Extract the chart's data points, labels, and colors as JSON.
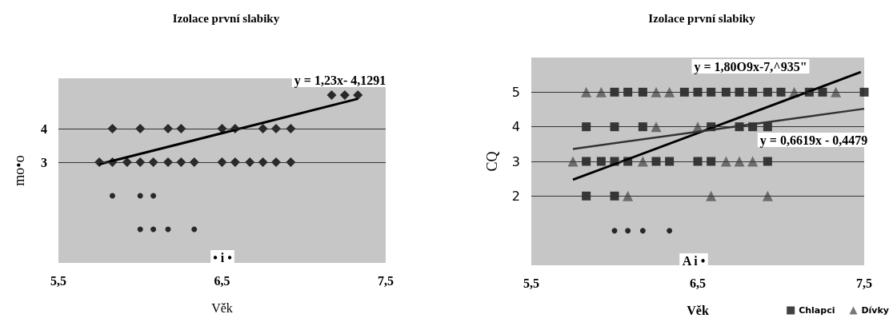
{
  "chart_data": [
    {
      "type": "scatter",
      "title": "Izolace první slabiky",
      "xlabel": "Věk",
      "ylabel": "mo•o",
      "xlim": [
        5.5,
        7.5
      ],
      "xticks": [
        {
          "value": 5.5,
          "label": "5,5"
        },
        {
          "value": 6.5,
          "label": "6,5"
        },
        {
          "value": 7.5,
          "label": "7,5"
        }
      ],
      "ylim": [
        0,
        5.5
      ],
      "yticks": [
        3,
        4
      ],
      "grid": "y",
      "legend": false,
      "series": [
        {
          "marker": "diamond",
          "color": "#000000",
          "x": [
            5.75,
            5.83,
            5.92,
            6.0,
            6.08,
            6.17,
            6.25,
            6.33,
            6.5,
            6.58,
            6.67,
            6.75,
            6.83,
            6.92,
            5.83,
            6.0,
            6.17,
            6.25,
            6.5,
            6.58,
            6.75,
            6.83,
            6.92,
            7.17,
            7.25,
            7.33
          ],
          "values": [
            3,
            3,
            3,
            3,
            3,
            3,
            3,
            3,
            3,
            3,
            3,
            3,
            3,
            3,
            4,
            4,
            4,
            4,
            4,
            4,
            4,
            4,
            4,
            5,
            5,
            5
          ]
        },
        {
          "marker": "circle",
          "color": "#000000",
          "x": [
            5.83,
            6.0,
            6.08,
            6.0,
            6.08,
            6.17,
            6.33
          ],
          "values": [
            2,
            2,
            2,
            1,
            1,
            1,
            1
          ]
        },
        {
          "type": "line",
          "marker": "none",
          "color": "#000000",
          "x": [
            5.75,
            7.33
          ],
          "values": [
            2.94,
            4.89
          ]
        }
      ],
      "annotations": [
        "y = 1,23x- 4,1291",
        "• i •"
      ]
    },
    {
      "type": "scatter",
      "title": "Izolace první slabiky",
      "xlabel": "Věk",
      "ylabel": "CQ",
      "xlim": [
        5.5,
        7.5
      ],
      "xticks": [
        {
          "value": 5.5,
          "label": "5,5"
        },
        {
          "value": 6.5,
          "label": "6,5"
        },
        {
          "value": 7.5,
          "label": "7,5"
        }
      ],
      "ylim": [
        0,
        6
      ],
      "yticks": [
        2,
        3,
        4,
        5
      ],
      "grid": "y",
      "legend": "bottom right",
      "series": [
        {
          "name": "Chlapci",
          "marker": "square",
          "color": "#111111",
          "x": [
            6.0,
            6.08,
            6.17,
            6.42,
            6.5,
            6.58,
            6.67,
            6.75,
            6.83,
            6.92,
            7.0,
            7.17,
            7.25,
            7.5,
            5.83,
            6.0,
            6.17,
            6.58,
            6.75,
            6.83,
            6.92,
            5.83,
            5.92,
            6.0,
            6.08,
            6.25,
            6.33,
            6.5,
            6.58,
            6.92,
            5.83,
            6.0
          ],
          "values": [
            5,
            5,
            5,
            5,
            5,
            5,
            5,
            5,
            5,
            5,
            5,
            5,
            5,
            5,
            4,
            4,
            4,
            4,
            4,
            4,
            4,
            3,
            3,
            3,
            3,
            3,
            3,
            3,
            3,
            3,
            2,
            2
          ]
        },
        {
          "name": "Dívky",
          "marker": "triangle",
          "color": "#555555",
          "x": [
            5.83,
            5.92,
            6.25,
            6.33,
            7.08,
            7.33,
            6.25,
            6.5,
            5.75,
            6.17,
            6.67,
            6.75,
            6.83,
            6.08,
            6.58,
            6.92
          ],
          "values": [
            5,
            5,
            5,
            5,
            5,
            5,
            4,
            4,
            3,
            3,
            3,
            3,
            3,
            2,
            2,
            2
          ]
        },
        {
          "marker": "circle",
          "color": "#000000",
          "x": [
            6.0,
            6.08,
            6.17,
            6.33
          ],
          "values": [
            1,
            1,
            1,
            1
          ]
        },
        {
          "type": "line",
          "marker": "none",
          "color": "#000000",
          "x": [
            5.75,
            7.48
          ],
          "values": [
            2.47,
            5.58
          ]
        },
        {
          "type": "line",
          "marker": "none",
          "color": "#333333",
          "x": [
            5.75,
            7.5
          ],
          "values": [
            3.36,
            4.52
          ]
        }
      ],
      "annotations": [
        "y = 1,80O9x-7,^935\"",
        "y = 0,6619x - 0,4479",
        "A i •"
      ]
    }
  ]
}
